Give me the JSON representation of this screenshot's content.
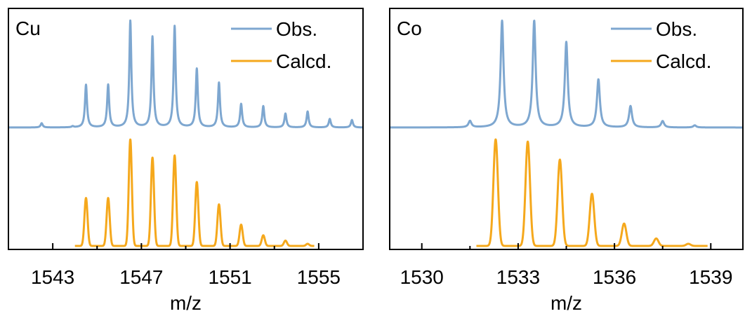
{
  "chart_data": [
    {
      "type": "line",
      "panel_label": "Cu",
      "xlabel": "m/z",
      "xlim": [
        1541,
        1557
      ],
      "xticks": [
        1543,
        1547,
        1551,
        1555
      ],
      "minor_ticks": [
        1545,
        1549,
        1553
      ],
      "grid": false,
      "legend": "top-right",
      "series": [
        {
          "name": "Obs.",
          "color": "#7ea7d0",
          "offset": 1,
          "peaks": [
            {
              "x": 1542.5,
              "y": 0.04
            },
            {
              "x": 1543.9,
              "y": 0.01
            },
            {
              "x": 1544.5,
              "y": 0.4
            },
            {
              "x": 1545.5,
              "y": 0.4
            },
            {
              "x": 1546.5,
              "y": 1.0
            },
            {
              "x": 1547.5,
              "y": 0.85
            },
            {
              "x": 1548.5,
              "y": 0.95
            },
            {
              "x": 1549.5,
              "y": 0.55
            },
            {
              "x": 1550.5,
              "y": 0.42
            },
            {
              "x": 1551.5,
              "y": 0.22
            },
            {
              "x": 1552.5,
              "y": 0.2
            },
            {
              "x": 1553.5,
              "y": 0.13
            },
            {
              "x": 1554.5,
              "y": 0.15
            },
            {
              "x": 1555.5,
              "y": 0.08
            },
            {
              "x": 1556.5,
              "y": 0.07
            }
          ]
        },
        {
          "name": "Calcd.",
          "color": "#f5a81c",
          "offset": 0,
          "range": [
            1544.0,
            1554.8
          ],
          "peaks": [
            {
              "x": 1544.5,
              "y": 0.45
            },
            {
              "x": 1545.5,
              "y": 0.45
            },
            {
              "x": 1546.5,
              "y": 1.0
            },
            {
              "x": 1547.5,
              "y": 0.83
            },
            {
              "x": 1548.5,
              "y": 0.85
            },
            {
              "x": 1549.5,
              "y": 0.6
            },
            {
              "x": 1550.5,
              "y": 0.39
            },
            {
              "x": 1551.5,
              "y": 0.2
            },
            {
              "x": 1552.5,
              "y": 0.1
            },
            {
              "x": 1553.5,
              "y": 0.05
            },
            {
              "x": 1554.5,
              "y": 0.02
            }
          ]
        }
      ]
    },
    {
      "type": "line",
      "panel_label": "Co",
      "xlabel": "m/z",
      "xlim": [
        1529,
        1540
      ],
      "xticks": [
        1530,
        1533,
        1536,
        1539
      ],
      "minor_ticks": [
        1531.5,
        1534.5,
        1537.5
      ],
      "grid": false,
      "legend": "top-right",
      "series": [
        {
          "name": "Obs.",
          "color": "#7ea7d0",
          "offset": 1,
          "peaks": [
            {
              "x": 1531.5,
              "y": 0.06
            },
            {
              "x": 1532.5,
              "y": 1.0
            },
            {
              "x": 1533.5,
              "y": 1.0
            },
            {
              "x": 1534.5,
              "y": 0.8
            },
            {
              "x": 1535.5,
              "y": 0.45
            },
            {
              "x": 1536.5,
              "y": 0.2
            },
            {
              "x": 1537.5,
              "y": 0.06
            },
            {
              "x": 1538.5,
              "y": 0.02
            }
          ]
        },
        {
          "name": "Calcd.",
          "color": "#f5a81c",
          "offset": 0,
          "range": [
            1531.7,
            1538.9
          ],
          "peaks": [
            {
              "x": 1532.3,
              "y": 1.0
            },
            {
              "x": 1533.3,
              "y": 0.98
            },
            {
              "x": 1534.3,
              "y": 0.81
            },
            {
              "x": 1535.3,
              "y": 0.49
            },
            {
              "x": 1536.3,
              "y": 0.21
            },
            {
              "x": 1537.3,
              "y": 0.07
            },
            {
              "x": 1538.3,
              "y": 0.02
            }
          ]
        }
      ]
    }
  ]
}
